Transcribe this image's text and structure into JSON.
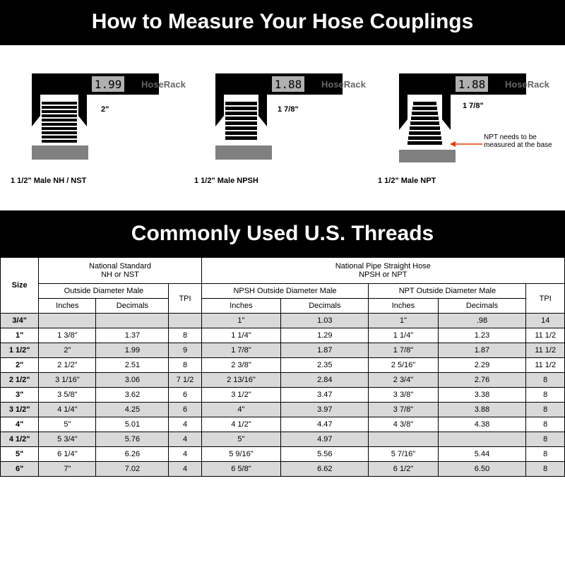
{
  "title": "How to Measure Your Hose Couplings",
  "section_title": "Commonly Used U.S. Threads",
  "diagrams": [
    {
      "reading": "1.99",
      "dim": "2\"",
      "caption": "1 1/2\" Male NH / NST",
      "brand": "HoseRack"
    },
    {
      "reading": "1.88",
      "dim": "1 7/8\"",
      "caption": "1 1/2\" Male NPSH",
      "brand": "HoseRack"
    },
    {
      "reading": "1.88",
      "dim": "1 7/8\"",
      "caption": "1 1/2\" Male NPT",
      "brand": "HoseRack",
      "note": "NPT needs to be measured at the base"
    }
  ],
  "header": {
    "size": "Size",
    "nst_group": "National Standard\nNH or NST",
    "npsh_group": "National Pipe Straight Hose\nNPSH or NPT",
    "odm": "Outside Diameter Male",
    "npsh_odm": "NPSH Outside Diameter Male",
    "npt_odm": "NPT Outside Diameter Male",
    "tpi": "TPI",
    "inches": "Inches",
    "decimals": "Decimals"
  },
  "rows": [
    {
      "size": "3/4\"",
      "nst_in": "",
      "nst_dec": "",
      "nst_tpi": "",
      "npsh_in": "1\"",
      "npsh_dec": "1.03",
      "npt_in": "1\"",
      "npt_dec": ".98",
      "np_tpi": "14",
      "shade": true
    },
    {
      "size": "1\"",
      "nst_in": "1 3/8\"",
      "nst_dec": "1.37",
      "nst_tpi": "8",
      "npsh_in": "1 1/4\"",
      "npsh_dec": "1.29",
      "npt_in": "1 1/4\"",
      "npt_dec": "1.23",
      "np_tpi": "11 1/2",
      "shade": false
    },
    {
      "size": "1 1/2\"",
      "nst_in": "2\"",
      "nst_dec": "1.99",
      "nst_tpi": "9",
      "npsh_in": "1 7/8\"",
      "npsh_dec": "1.87",
      "npt_in": "1 7/8\"",
      "npt_dec": "1.87",
      "np_tpi": "11 1/2",
      "shade": true
    },
    {
      "size": "2\"",
      "nst_in": "2 1/2\"",
      "nst_dec": "2.51",
      "nst_tpi": "8",
      "npsh_in": "2 3/8\"",
      "npsh_dec": "2.35",
      "npt_in": "2 5/16\"",
      "npt_dec": "2.29",
      "np_tpi": "11 1/2",
      "shade": false
    },
    {
      "size": "2 1/2\"",
      "nst_in": "3 1/16\"",
      "nst_dec": "3.06",
      "nst_tpi": "7 1/2",
      "npsh_in": "2 13/16\"",
      "npsh_dec": "2.84",
      "npt_in": "2 3/4\"",
      "npt_dec": "2.76",
      "np_tpi": "8",
      "shade": true
    },
    {
      "size": "3\"",
      "nst_in": "3 5/8\"",
      "nst_dec": "3.62",
      "nst_tpi": "6",
      "npsh_in": "3 1/2\"",
      "npsh_dec": "3.47",
      "npt_in": "3 3/8\"",
      "npt_dec": "3.38",
      "np_tpi": "8",
      "shade": false
    },
    {
      "size": "3 1/2\"",
      "nst_in": "4 1/4\"",
      "nst_dec": "4.25",
      "nst_tpi": "6",
      "npsh_in": "4\"",
      "npsh_dec": "3.97",
      "npt_in": "3 7/8\"",
      "npt_dec": "3.88",
      "np_tpi": "8",
      "shade": true
    },
    {
      "size": "4\"",
      "nst_in": "5\"",
      "nst_dec": "5.01",
      "nst_tpi": "4",
      "npsh_in": "4 1/2\"",
      "npsh_dec": "4.47",
      "npt_in": "4 3/8\"",
      "npt_dec": "4.38",
      "np_tpi": "8",
      "shade": false
    },
    {
      "size": "4 1/2\"",
      "nst_in": "5 3/4\"",
      "nst_dec": "5.76",
      "nst_tpi": "4",
      "npsh_in": "5\"",
      "npsh_dec": "4.97",
      "npt_in": "",
      "npt_dec": "",
      "np_tpi": "8",
      "shade": true
    },
    {
      "size": "5\"",
      "nst_in": "6 1/4\"",
      "nst_dec": "6.26",
      "nst_tpi": "4",
      "npsh_in": "5 9/16\"",
      "npsh_dec": "5.56",
      "npt_in": "5 7/16\"",
      "npt_dec": "5.44",
      "np_tpi": "8",
      "shade": false
    },
    {
      "size": "6\"",
      "nst_in": "7\"",
      "nst_dec": "7.02",
      "nst_tpi": "4",
      "npsh_in": "6 5/8\"",
      "npsh_dec": "6.62",
      "npt_in": "6 1/2\"",
      "npt_dec": "6.50",
      "np_tpi": "8",
      "shade": true
    }
  ],
  "colors": {
    "title_bg": "#000000",
    "title_fg": "#ffffff",
    "shade": "#d9d9d9",
    "border": "#000000",
    "arrow": "#e63900",
    "lcd": "#b0b0b0",
    "metal": "#808080"
  }
}
